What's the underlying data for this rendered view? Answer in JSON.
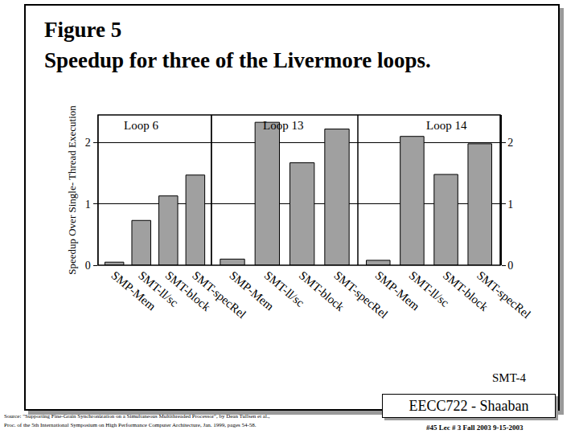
{
  "slide": {
    "title": [
      "Figure 5",
      "Speedup for three of the Livermore loops."
    ],
    "label": "SMT-4",
    "course": "EECC722 - Shaaban",
    "footer": "#45   Lec # 3   Fall 2003   9-15-2003",
    "source": [
      "Source: \"Supporting Fine-Grain Synchronization on a Simultaneous Multithreaded Processor\", by Dean Tullsen et al.,",
      "Proc. of the 5th International Symposium on High Performance Computer Architecture, Jan. 1999, pages 54-58."
    ]
  },
  "chart_data": [
    {
      "type": "bar",
      "title": "Loop 6",
      "ylabel": "Speedup Over Single- Thread Execution",
      "categories": [
        "SMP-Mem",
        "SMT-ll/sc",
        "SMT-block",
        "SMT-specRel"
      ],
      "values": [
        0.05,
        0.73,
        1.13,
        1.47
      ],
      "color": "#a0a0a0",
      "ylim": [
        0,
        2.45
      ],
      "yticks": [
        0,
        1,
        2
      ],
      "grid": true
    },
    {
      "type": "bar",
      "title": "Loop 13",
      "categories": [
        "SMP-Mem",
        "SMT-ll/sc",
        "SMT-block",
        "SMT-specRel"
      ],
      "values": [
        0.1,
        2.33,
        1.67,
        2.22
      ],
      "color": "#a0a0a0",
      "ylim": [
        0,
        2.45
      ],
      "yticks": [
        0,
        1,
        2
      ],
      "grid": true,
      "tick_labels": "x"
    },
    {
      "type": "bar",
      "title": "Loop 14",
      "axis": "y2",
      "categories": [
        "SMP-Mem",
        "SMT-ll/sc",
        "SMT-block",
        "SMT-specRel"
      ],
      "values": [
        0.08,
        2.1,
        1.48,
        1.98
      ],
      "color": "#a0a0a0",
      "y2lim": [
        0,
        2.45
      ],
      "y2ticks": [
        0,
        1,
        2
      ],
      "grid": true
    }
  ]
}
